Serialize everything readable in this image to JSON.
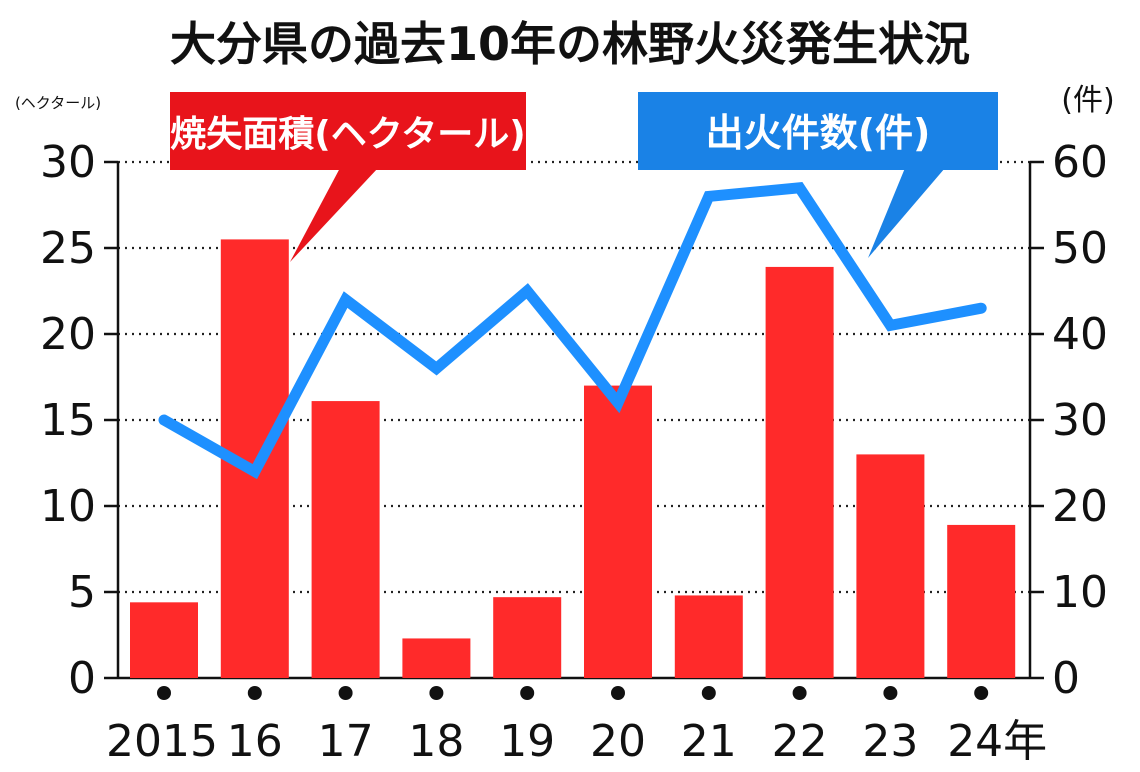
{
  "chart_data": {
    "type": "bar+line",
    "title": "大分県の過去10年の林野火災発生状況",
    "categories": [
      "2015",
      "16",
      "17",
      "18",
      "19",
      "20",
      "21",
      "22",
      "23",
      "24年"
    ],
    "series": [
      {
        "name": "焼失面積(ヘクタール)",
        "type": "bar",
        "axis": "left",
        "color": "#ff2a2a",
        "values": [
          4.4,
          25.5,
          16.1,
          2.3,
          4.7,
          17.0,
          4.8,
          23.9,
          13.0,
          8.9
        ]
      },
      {
        "name": "出火件数(件)",
        "type": "line",
        "axis": "right",
        "color": "#1e90ff",
        "values": [
          30,
          24,
          44,
          36,
          45,
          32,
          56,
          57,
          41,
          43
        ]
      }
    ],
    "left_axis": {
      "unit": "(ヘクタール)",
      "ylim": [
        0,
        30
      ],
      "ticks": [
        "0",
        "5",
        "10",
        "15",
        "20",
        "25",
        "30"
      ]
    },
    "right_axis": {
      "unit": "(件)",
      "ylim": [
        0,
        60
      ],
      "ticks": [
        "0",
        "10",
        "20",
        "30",
        "40",
        "50",
        "60"
      ]
    },
    "legend": [
      {
        "label": "焼失面積(ヘクタール)",
        "color": "#e8141b"
      },
      {
        "label": "出火件数(件)",
        "color": "#1a82e6"
      }
    ],
    "grid": "dotted-horizontal"
  }
}
